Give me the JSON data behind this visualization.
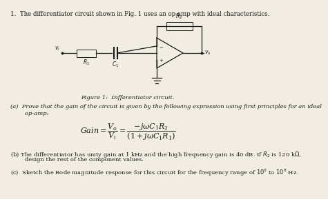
{
  "title_text": "1.  The differentiator circuit shown in Fig. 1 uses an op-amp with ideal characteristics.",
  "figure_caption": "Figure 1:  Differentiator circuit.",
  "part_a_line1": "(a)  Prove that the gain of the circuit is given by the following expression using first principles for an ideal",
  "part_a_line2": "        op-amp:",
  "part_b_line1": "(b) The differentiator has unity gain at 1 kHz and the high frequency gain is 40 dB. If $R_2$ is 120 k$\\Omega$,",
  "part_b_line2": "        design the rest of the component values.",
  "part_c": "(c)  Sketch the Bode magnitude response for this circuit for the frequency range of $10^0$ to $10^8$ Hz.",
  "bg_color": "#f2ede3",
  "text_color": "#1a1a1a",
  "circuit_color": "#1a1a1a",
  "font_size_title": 6.2,
  "font_size_body": 6.0,
  "font_size_circuit": 5.5,
  "font_size_eq": 8.0
}
